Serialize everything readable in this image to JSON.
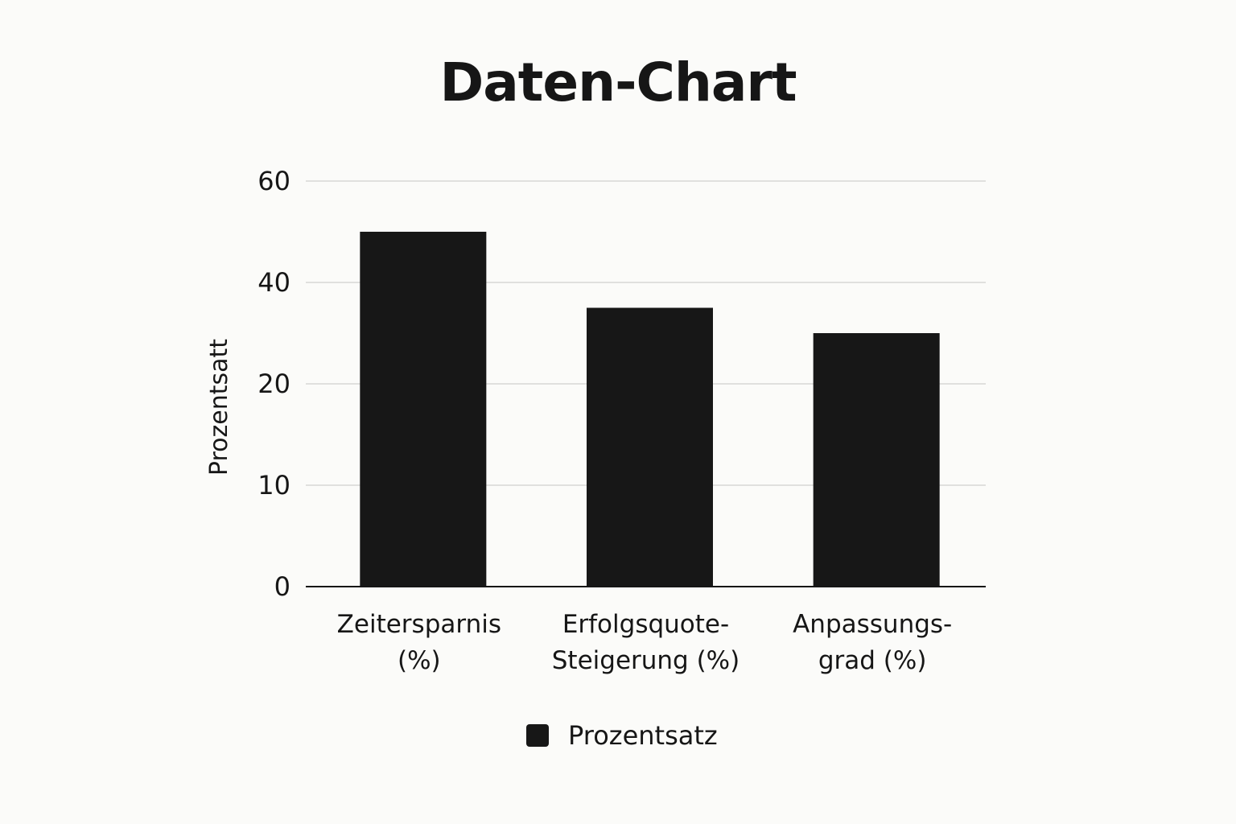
{
  "chart_data": {
    "type": "bar",
    "title": "Daten-Chart",
    "xlabel": "",
    "ylabel": "Prozentsatt",
    "categories": [
      [
        "Zeitersparnis",
        "(%)"
      ],
      [
        "Erfolgsquote-",
        "Steigerung (%)"
      ],
      [
        "Anpassungs-",
        "grad (%)"
      ]
    ],
    "series": [
      {
        "name": "Prozentsatz",
        "values": [
          50,
          35,
          30
        ],
        "color": "#171717"
      }
    ],
    "y_ticks": [
      "0",
      "10",
      "20",
      "40",
      "60"
    ],
    "ylim": [
      0,
      60
    ],
    "grid": true,
    "legend_position": "bottom"
  }
}
